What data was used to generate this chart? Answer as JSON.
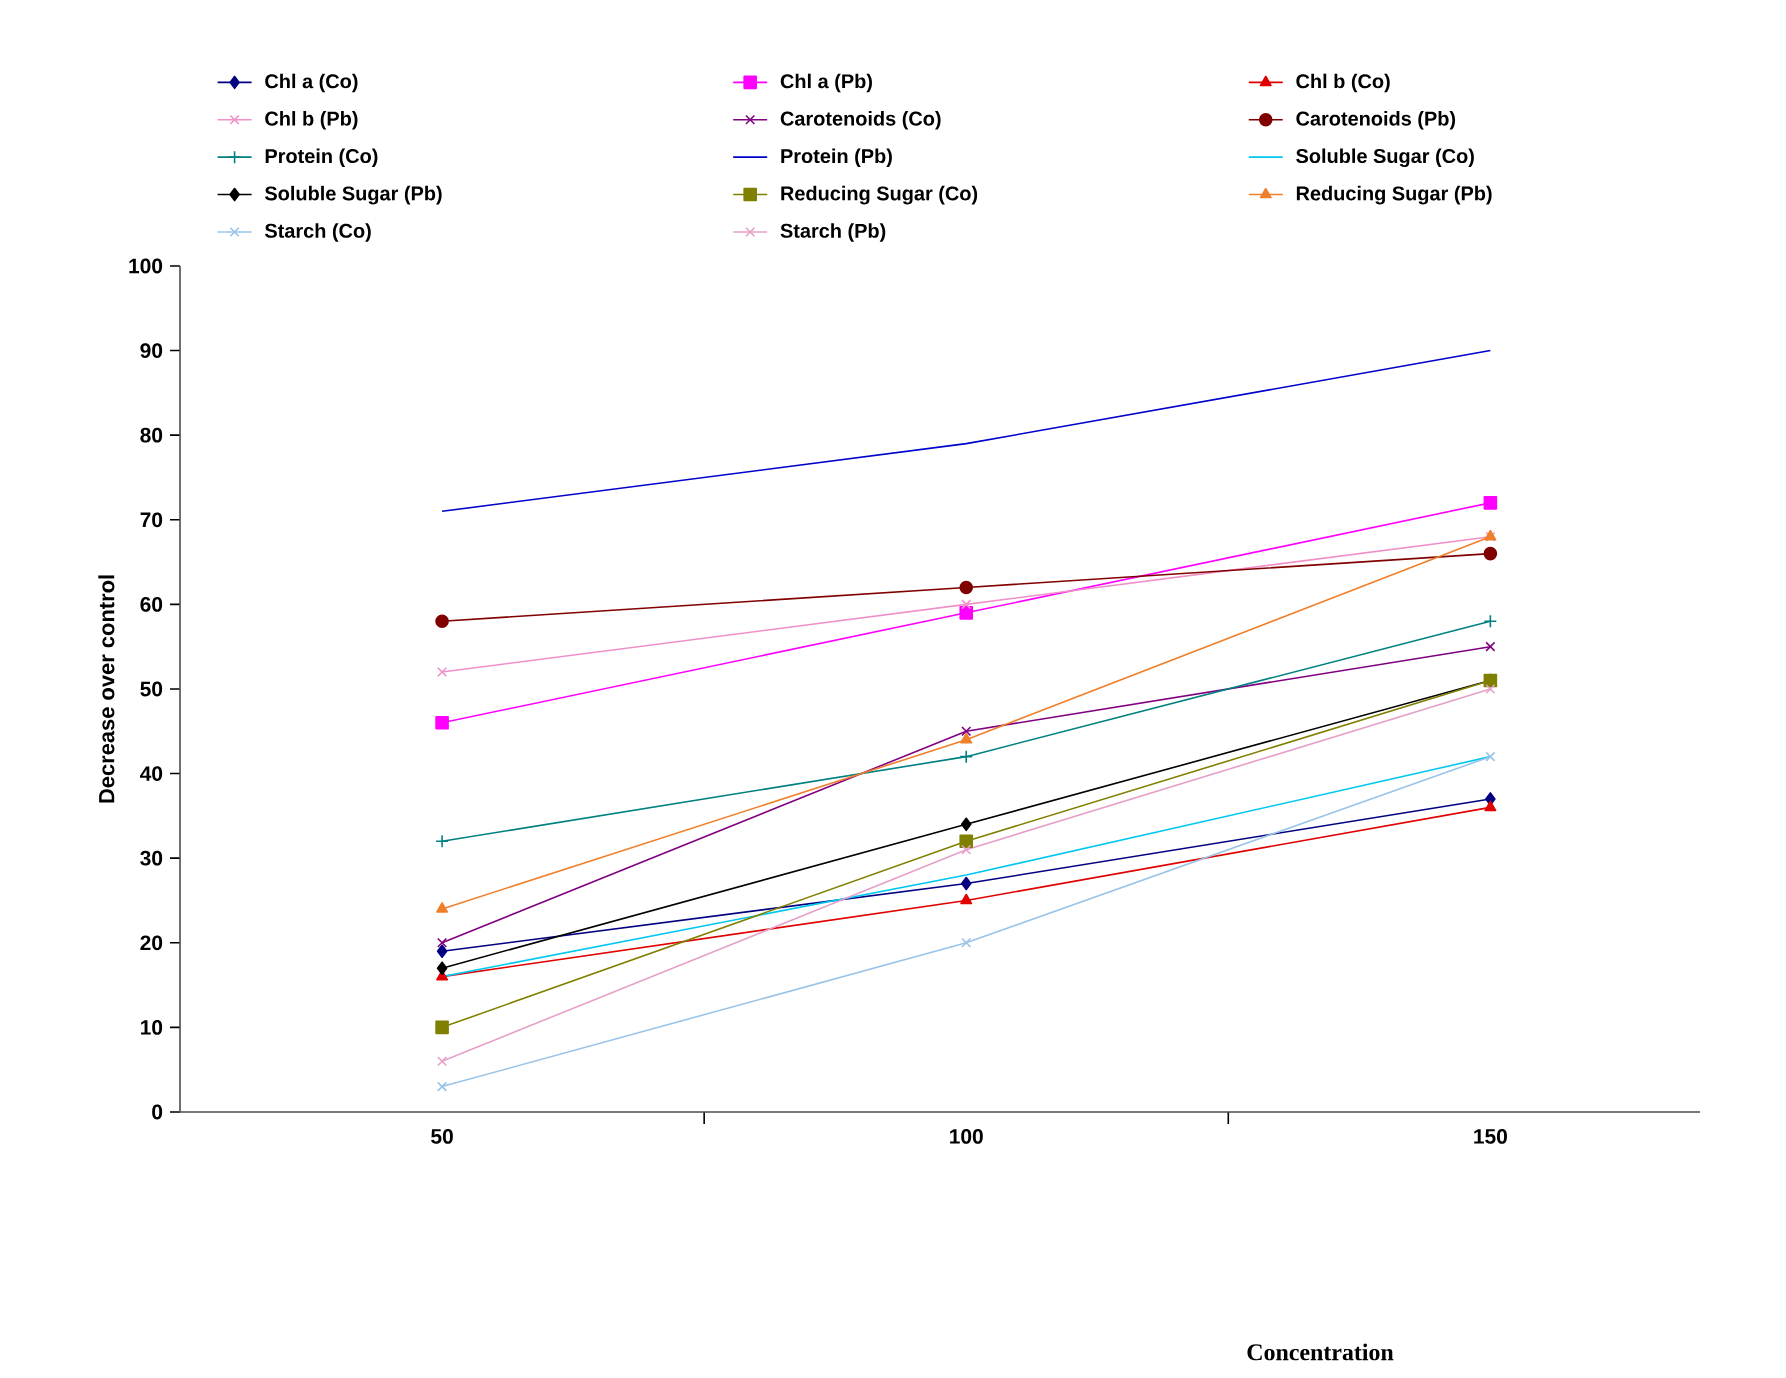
{
  "chart_data": {
    "type": "line",
    "ylabel": "Decrease over control",
    "annotations": [
      "Concentration"
    ],
    "categories": [
      "50",
      "100",
      "150"
    ],
    "ylim": [
      0,
      100
    ],
    "yticks": [
      0,
      10,
      20,
      30,
      40,
      50,
      60,
      70,
      80,
      90,
      100
    ],
    "grid": false,
    "legend": "top",
    "series": [
      {
        "name": "Chl a (Co)",
        "color": "#000080",
        "marker": "diamond",
        "values": [
          19,
          27,
          37
        ]
      },
      {
        "name": "Chl a (Pb)",
        "color": "#ff00ff",
        "marker": "square",
        "values": [
          46,
          59,
          72
        ]
      },
      {
        "name": "Chl b (Co)",
        "color": "#e00000",
        "marker": "triangle",
        "values": [
          16,
          25,
          36
        ]
      },
      {
        "name": "Chl b (Pb)",
        "color": "#f090c8",
        "marker": "cross",
        "values": [
          52,
          60,
          68
        ]
      },
      {
        "name": "Carotenoids (Co)",
        "color": "#800080",
        "marker": "cross",
        "values": [
          20,
          45,
          55
        ]
      },
      {
        "name": "Carotenoids (Pb)",
        "color": "#800000",
        "marker": "circle",
        "values": [
          58,
          62,
          66
        ]
      },
      {
        "name": "Protein (Co)",
        "color": "#008080",
        "marker": "plus",
        "values": [
          32,
          42,
          58
        ]
      },
      {
        "name": "Protein (Pb)",
        "color": "#0000cc",
        "marker": "none",
        "values": [
          71,
          79,
          90
        ]
      },
      {
        "name": "Soluble Sugar (Co)",
        "color": "#00c8f0",
        "marker": "none",
        "values": [
          16,
          28,
          42
        ]
      },
      {
        "name": "Soluble Sugar (Pb)",
        "color": "#000000",
        "marker": "diamond",
        "values": [
          17,
          34,
          51
        ]
      },
      {
        "name": "Reducing Sugar (Co)",
        "color": "#808000",
        "marker": "square",
        "values": [
          10,
          32,
          51
        ]
      },
      {
        "name": "Reducing Sugar (Pb)",
        "color": "#f07f2a",
        "marker": "triangle",
        "values": [
          24,
          44,
          68
        ]
      },
      {
        "name": "Starch (Co)",
        "color": "#99c4e8",
        "marker": "cross",
        "values": [
          3,
          20,
          42
        ]
      },
      {
        "name": "Starch (Pb)",
        "color": "#e6a0c8",
        "marker": "cross",
        "values": [
          6,
          31,
          50
        ]
      }
    ]
  }
}
